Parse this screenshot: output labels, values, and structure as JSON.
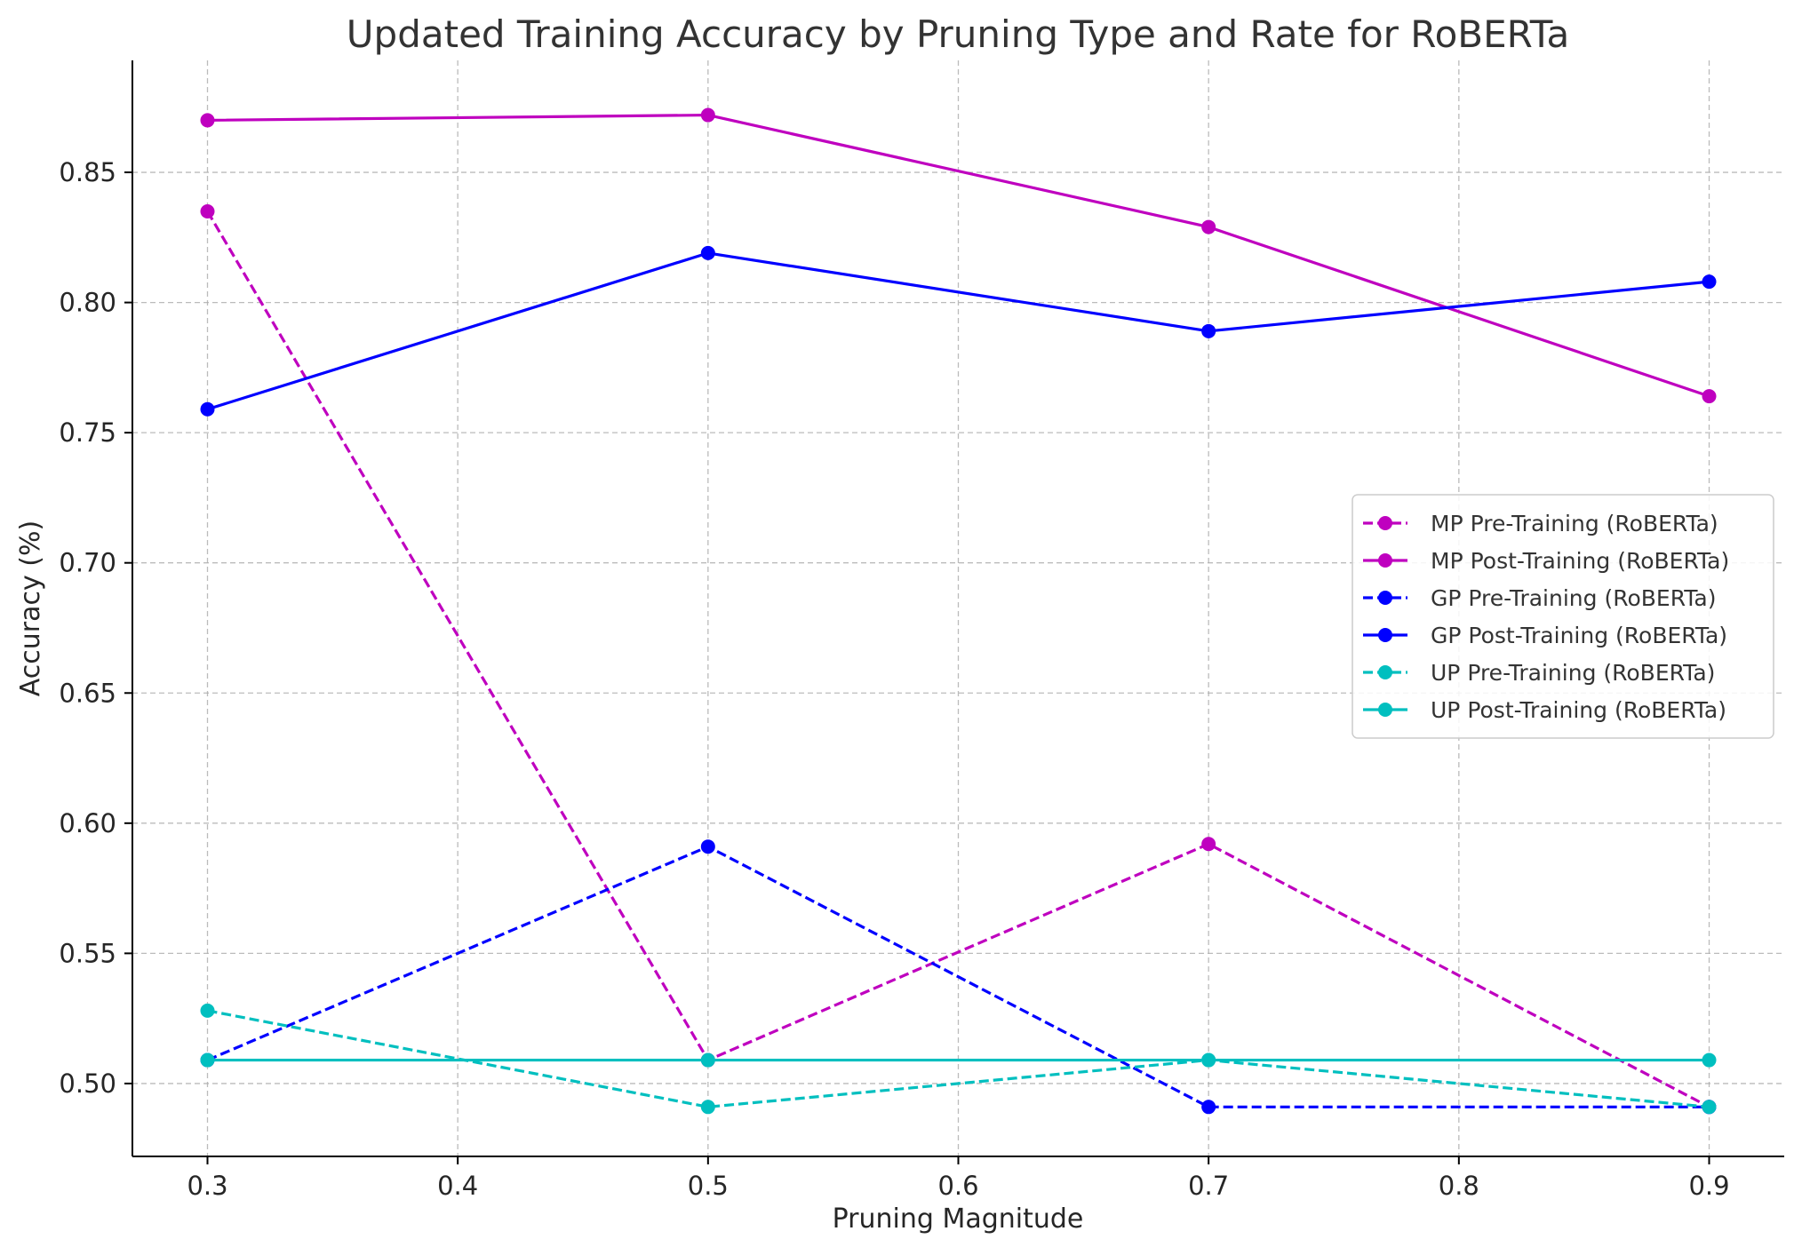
{
  "chart_data": {
    "type": "line",
    "title": "Updated Training Accuracy by Pruning Type and Rate for RoBERTa",
    "xlabel": "Pruning Magnitude",
    "ylabel": "Accuracy (%)",
    "x": [
      0.3,
      0.5,
      0.7,
      0.9
    ],
    "xlim": [
      0.27,
      0.93
    ],
    "ylim": [
      0.472,
      0.893
    ],
    "xticks": [
      0.3,
      0.4,
      0.5,
      0.6,
      0.7,
      0.8,
      0.9
    ],
    "xtick_labels": [
      "0.3",
      "0.4",
      "0.5",
      "0.6",
      "0.7",
      "0.8",
      "0.9"
    ],
    "yticks": [
      0.5,
      0.55,
      0.6,
      0.65,
      0.7,
      0.75,
      0.8,
      0.85
    ],
    "ytick_labels": [
      "0.50",
      "0.55",
      "0.60",
      "0.65",
      "0.70",
      "0.75",
      "0.80",
      "0.85"
    ],
    "grid": true,
    "legend_position": "center-right",
    "series": [
      {
        "name": "MP Pre-Training (RoBERTa)",
        "color": "#bf00bf",
        "style": "dashed",
        "values": [
          0.835,
          0.509,
          0.592,
          0.491
        ]
      },
      {
        "name": "MP Post-Training (RoBERTa)",
        "color": "#bf00bf",
        "style": "solid",
        "values": [
          0.87,
          0.872,
          0.829,
          0.764
        ]
      },
      {
        "name": "GP Pre-Training (RoBERTa)",
        "color": "#0000ff",
        "style": "dashed",
        "values": [
          0.509,
          0.591,
          0.491,
          0.491
        ]
      },
      {
        "name": "GP Post-Training (RoBERTa)",
        "color": "#0000ff",
        "style": "solid",
        "values": [
          0.759,
          0.819,
          0.789,
          0.808
        ]
      },
      {
        "name": "UP Pre-Training (RoBERTa)",
        "color": "#00bfbf",
        "style": "dashed",
        "values": [
          0.528,
          0.491,
          0.509,
          0.491
        ]
      },
      {
        "name": "UP Post-Training (RoBERTa)",
        "color": "#00bfbf",
        "style": "solid",
        "values": [
          0.509,
          0.509,
          0.509,
          0.509
        ]
      }
    ]
  }
}
